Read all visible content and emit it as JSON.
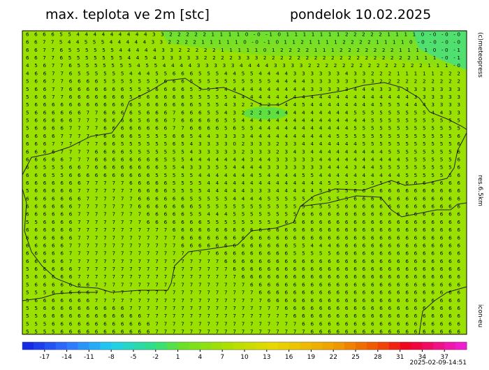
{
  "header": {
    "title": "max. teplota ve 2m [stc]",
    "date": "pondelok 10.02.2025"
  },
  "side": {
    "copyright": "(c)meteopress",
    "resolution": "res.6.5km",
    "model": "icon-eu"
  },
  "footer": {
    "timestamp": "2025-02-09-14:51"
  },
  "map": {
    "rows": [
      "6 6 6 6 5 5 4 4 4 4 4 4 4 4 4 3 3 2 2 2 2 2 1 1 1 1 0 -0 -1 0 1 1 1 1 1 1 1 2 2 2 2 2 1 1 1 1 0 -0 -0 -0",
      "6 6 7 7 5 4 4 5 5 5 4 4 4 4 4 3 3 2 2 2 2 1 1 1 1 1 0 -0 -1 0 1 1 2 1 1 1 1 2 2 2 2 1 1 1 1 0 -0 -0 -0 -0",
      "6 6 7 7 6 5 5 5 5 5 5 4 4 4 4 4 3 3 2 2 2 2 2 1 1 1 1 1 0 1 2 2 2 2 1 1 1 2 2 2 2 2 2 2 1 1 1 1 0 -0 -1",
      "6 6 7 7 6 5 5 5 5 5 5 5 4 4 5 4 3 3 3 3 3 2 2 2 2 3 3 3 2 2 2 2 2 2 2 2 2 2 2 2 2 2 2 2 2 2 1 1 1 -0 -1",
      "4 5 6 7 7 6 5 5 5 5 5 5 5 4 5 5 4 4 4 4 3 3 3 3 3 4 4 4 4 3 3 3 3 2 2 2 2 2 2 2 2 2 2 2 2 2 2 1 1 1 -0",
      "4 6 6 7 7 6 5 5 5 5 5 5 4 4 4 5 5 6 6 6 5 5 5 4 4 5 5 4 4 4 4 3 3 3 3 3 3 4 3 3 2 2 2 1 1 1 1 1 2 2 2",
      "5 6 6 7 7 6 6 6 6 5 5 5 5 5 5 5 6 6 6 5 5 5 5 5 5 5 5 5 5 4 4 4 4 3 3 3 3 3 3 3 3 2 2 2 2 2 2 2 2 2 2",
      "5 6 6 7 7 6 6 6 6 6 6 6 5 5 5 6 6 6 6 5 5 5 5 4 4 4 4 4 4 4 4 4 4 3 3 3 3 3 4 4 4 3 3 3 3 3 3 3 3 3 3",
      "5 6 6 7 7 6 6 6 6 6 6 6 5 5 6 6 6 6 6 5 5 5 5 5 4 4 4 4 4 4 4 4 4 4 4 4 4 4 4 4 4 4 4 4 4 3 3 3 3 3 3",
      "5 6 6 6 6 6 6 6 6 6 6 6 6 5 6 6 6 6 6 6 5 5 5 4 3 2 2 3 2 4 4 4 5 4 4 4 4 4 4 4 4 5 5 5 4 4 4 3 3 3 3",
      "5 6 6 6 6 6 6 7 7 6 6 6 6 5 6 6 6 7 6 6 6 5 5 4 3 2 2 2 3 4 4 4 4 4 4 4 4 4 5 5 5 5 5 5 5 5 5 4 4 3 3",
      "5 6 6 6 6 6 7 7 7 6 6 6 6 5 6 6 6 7 6 6 6 6 6 5 5 4 4 4 4 4 4 4 4 4 4 4 4 4 4 4 5 5 5 5 5 5 5 5 5 5 5",
      "5 6 6 6 6 7 7 7 7 6 6 6 6 6 6 6 6 7 7 6 6 6 6 5 6 5 5 4 4 4 4 4 4 4 4 4 4 4 5 5 5 5 5 5 5 5 5 5 5 5 5",
      "6 6 6 6 7 7 7 7 7 6 6 6 6 5 5 5 5 6 6 5 4 4 3 3 3 3 4 4 4 4 4 4 4 4 4 4 5 5 5 5 5 5 5 5 5 5 5 5 5 5 6",
      "6 6 6 7 7 7 7 7 7 6 6 5 5 5 5 5 5 6 5 4 3 3 3 3 0 2 3 3 3 2 3 3 4 4 4 4 4 4 4 5 5 5 5 5 5 5 5 5 5 5 6",
      "6 6 6 6 7 7 7 7 6 6 6 6 5 5 5 5 5 5 5 4 3 3 3 3 3 2 3 3 3 2 3 4 3 4 4 4 4 4 4 4 4 4 5 5 5 5 5 5 5 5 6",
      "6 6 6 6 6 7 7 7 6 6 6 6 6 6 6 6 5 5 5 4 4 4 4 4 4 4 3 4 4 3 3 3 3 3 4 4 4 4 4 4 4 4 4 4 5 5 5 5 5 5 6",
      "6 6 5 5 5 6 6 7 6 6 6 6 6 6 6 6 5 5 4 3 3 3 5 5 4 4 4 4 3 3 3 3 3 3 3 4 4 4 3 4 4 5 5 5 5 5 5 5 5 5 6",
      "6 6 6 5 5 6 6 6 6 6 6 6 6 6 6 5 5 5 5 5 4 4 4 4 4 4 4 5 4 4 4 4 5 5 4 4 4 4 4 4 4 4 4 4 5 5 5 5 5 5 6",
      "6 6 6 6 6 6 6 7 7 7 7 7 6 6 6 6 6 5 5 5 5 4 4 4 4 4 4 4 4 4 4 4 4 4 4 5 5 5 5 5 5 5 5 6 6 6 6 6 6 6 6",
      "5 6 6 6 6 6 7 7 7 7 7 7 7 6 6 6 6 5 5 5 5 4 4 4 4 4 3 3 3 4 4 4 4 4 5 5 5 5 6 6 6 6 6 6 6 6 6 6 6 6 6",
      "6 6 6 6 6 6 6 7 7 7 7 7 7 6 6 6 6 6 6 5 5 5 5 5 4 4 4 4 5 5 5 5 5 5 5 5 5 5 6 6 6 6 6 6 6 6 6 6 6 6 6",
      "6 6 6 6 6 6 7 7 7 7 7 7 7 6 6 6 6 6 6 6 5 5 5 5 5 5 5 5 5 5 5 5 5 5 5 5 5 6 6 6 6 6 6 6 6 6 6 6 6 6 6",
      "6 6 6 6 6 6 7 7 7 7 7 7 7 7 6 6 6 6 6 5 5 4 4 4 5 5 5 5 5 5 5 5 6 6 6 6 6 6 6 6 6 6 6 6 6 6 6 6 6 6 6",
      "5 5 6 6 6 6 7 7 7 7 7 7 7 7 6 6 6 6 6 6 6 5 5 5 5 5 5 5 5 6 6 6 6 6 6 6 6 6 6 6 6 6 6 6 6 6 6 6 6 6 6",
      "6 6 6 6 6 6 7 7 7 7 7 7 7 7 7 7 7 6 6 6 6 6 6 6 6 6 6 6 6 6 6 6 6 6 6 6 6 6 6 6 6 6 6 6 6 6 6 6 6 6 6",
      "6 6 6 6 6 6 7 7 7 7 7 7 7 7 7 7 7 7 6 6 6 6 6 6 6 6 6 6 6 6 6 6 6 6 6 6 6 6 6 6 6 6 6 6 6 6 6 6 6 6 6",
      "6 6 6 6 6 7 7 7 7 7 7 7 7 7 7 7 7 7 6 6 6 6 6 6 6 6 6 6 6 6 6 5 5 4 4 4 6 6 6 6 6 6 6 6 6 6 6 6 6 6 6",
      "6 6 6 6 6 7 7 7 7 7 7 7 7 7 7 7 7 7 7 7 7 7 6 6 6 6 6 6 6 6 6 5 5 5 5 5 6 6 6 6 6 6 6 6 6 6 6 6 6 6 6",
      "6 6 6 6 6 7 7 7 7 7 7 7 7 7 7 7 7 7 7 7 7 7 7 6 6 6 6 6 6 6 6 6 6 6 6 6 6 6 6 6 6 6 6 6 6 6 6 6 6 6 6",
      "5 6 6 6 6 6 7 7 7 7 7 7 7 7 7 7 7 7 7 7 7 7 7 7 6 6 6 6 6 6 6 6 6 6 6 6 6 6 6 6 6 6 6 6 6 6 6 6 6 6 6",
      "5 6 6 6 6 6 7 7 7 7 7 7 7 7 7 7 7 7 7 7 7 7 7 7 7 6 6 6 6 6 6 6 6 6 6 6 6 6 6 6 6 6 6 6 6 6 6 6 6 6 6",
      "5 6 6 6 6 6 6 6 7 7 7 7 7 7 7 7 7 7 7 7 7 7 7 7 7 7 6 6 6 6 6 6 6 6 6 6 6 6 6 6 6 6 6 6 6 6 6 6 6 6 6",
      "5 5 5 6 6 6 6 6 7 7 7 7 7 7 7 7 7 7 7 7 7 7 7 7 7 7 7 6 6 6 6 6 6 6 6 6 6 6 6 6 6 6 6 6 6 6 6 6 6 6 6",
      "5 6 6 6 6 6 6 6 7 7 7 7 7 7 7 7 7 7 7 7 7 7 7 7 7 7 7 7 6 6 6 6 6 6 6 6 6 6 6 6 6 6 6 6 6 6 6 6 6 6 6",
      "5 5 6 6 6 6 6 6 6 6 6 6 7 7 7 7 7 7 7 7 7 7 7 7 7 7 7 7 7 7 6 6 6 6 6 6 6 6 6 6 6 6 6 6 6 6 6 6 6 6 6",
      "5 5 6 6 6 6 6 6 6 6 6 6 6 6 7 7 7 7 7 7 7 7 7 7 7 7 7 7 7 7 7 6 6 6 6 6 6 6 6 6 6 6 6 6 6 6 6 6 6 6 6",
      "5 5 5 6 6 6 6 6 6 6 6 6 6 6 6 7 7 7 7 7 7 7 7 7 7 7 7 7 7 7 7 7 6 6 6 6 6 6 6 6 6 6 6 6 6 6 6 6 6 6 6",
      "5 5 5 5 6 6 6 6 6 6 6 6 6 6 6 7 7 7 7 7 7 7 7 7 7 7 7 7 7 7 7 7 7 6 6 6 6 6 6 6 6 6 6 6 6 6 6 6 6 6 6"
    ]
  },
  "colorbar": {
    "min": -20,
    "max": 40,
    "step": 1.5,
    "ticks": [
      -17,
      -14,
      -11,
      -8,
      -5,
      -2,
      1,
      4,
      7,
      10,
      13,
      16,
      19,
      22,
      25,
      28,
      31,
      34,
      37
    ],
    "stops": [
      {
        "value": -20,
        "color": "#1020e0"
      },
      {
        "value": -14,
        "color": "#3070ff"
      },
      {
        "value": -8,
        "color": "#20d0f0"
      },
      {
        "value": -2,
        "color": "#30e080"
      },
      {
        "value": 2,
        "color": "#70e020"
      },
      {
        "value": 8,
        "color": "#b0e000"
      },
      {
        "value": 14,
        "color": "#e8d800"
      },
      {
        "value": 22,
        "color": "#f0a000"
      },
      {
        "value": 28,
        "color": "#f05000"
      },
      {
        "value": 32,
        "color": "#f00020"
      },
      {
        "value": 40,
        "color": "#f020e0"
      }
    ]
  }
}
